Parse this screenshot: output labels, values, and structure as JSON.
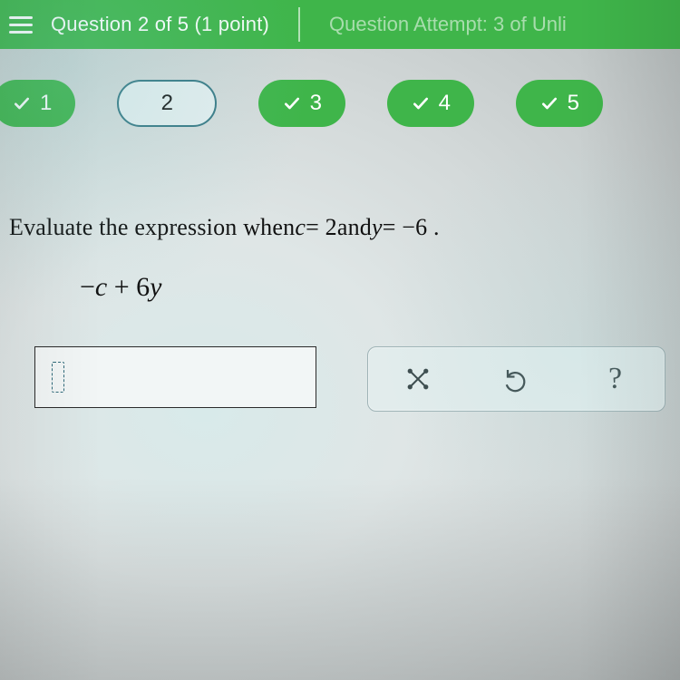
{
  "colors": {
    "header_bg": "#3fb54a",
    "pill_done_bg": "#3fb54a",
    "pill_current_border": "#3a7a86",
    "text_dark": "#111111",
    "tool_icon": "#3b4a4c"
  },
  "header": {
    "question_label": "Question 2 of 5",
    "points": "(1 point)",
    "attempt": "Question Attempt: 3 of Unli"
  },
  "nav": {
    "items": [
      {
        "n": "1",
        "state": "done"
      },
      {
        "n": "2",
        "state": "current"
      },
      {
        "n": "3",
        "state": "done"
      },
      {
        "n": "4",
        "state": "done"
      },
      {
        "n": "5",
        "state": "done"
      }
    ]
  },
  "question": {
    "prompt_pre": "Evaluate the expression when ",
    "var1": "c",
    "eq1": " = 2",
    "mid": " and ",
    "var2": "y",
    "eq2": " = −6 .",
    "expression_prefix": "−",
    "expression_body_c": "c",
    "expression_plus": " + 6",
    "expression_body_y": "y"
  },
  "tools": {
    "clear": "clear",
    "undo": "undo",
    "help": "?"
  }
}
